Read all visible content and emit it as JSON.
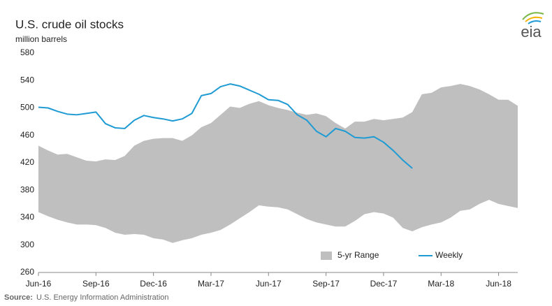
{
  "chart_data": {
    "type": "line",
    "title": "U.S. crude oil stocks",
    "y_label": "million barrels",
    "logo": "eia",
    "source_label": "Source:",
    "source": "U.S. Energy Information Administration",
    "categories": [
      "Jun-16",
      null,
      null,
      null,
      null,
      null,
      "Sep-16",
      null,
      null,
      null,
      null,
      null,
      "Dec-16",
      null,
      null,
      null,
      null,
      null,
      "Mar-17",
      null,
      null,
      null,
      null,
      null,
      "Jun-17",
      null,
      null,
      null,
      null,
      null,
      "Sep-17",
      null,
      null,
      null,
      null,
      null,
      "Dec-17",
      null,
      null,
      null,
      null,
      null,
      "Mar-18",
      null,
      null,
      null,
      null,
      null,
      "Jun-18",
      null,
      null
    ],
    "ylim": [
      260,
      580
    ],
    "yticks": [
      260,
      300,
      340,
      380,
      420,
      460,
      500,
      540,
      580
    ],
    "grid": false,
    "legend": "lower-right",
    "series": [
      {
        "name": "5-yr Range",
        "type": "range",
        "color": "#bfbfbf",
        "low": [
          348,
          342,
          337,
          333,
          330,
          330,
          329,
          325,
          318,
          315,
          316,
          315,
          310,
          308,
          303,
          307,
          310,
          315,
          318,
          322,
          330,
          339,
          348,
          358,
          356,
          355,
          352,
          345,
          338,
          333,
          330,
          327,
          327,
          335,
          345,
          348,
          346,
          340,
          325,
          320,
          326,
          330,
          333,
          340,
          350,
          352,
          360,
          366,
          360,
          357,
          354
        ],
        "high": [
          445,
          438,
          432,
          433,
          428,
          423,
          422,
          425,
          424,
          430,
          445,
          452,
          455,
          456,
          456,
          452,
          460,
          472,
          478,
          490,
          502,
          500,
          506,
          510,
          504,
          500,
          497,
          493,
          490,
          492,
          488,
          478,
          470,
          480,
          480,
          484,
          482,
          484,
          486,
          494,
          520,
          522,
          530,
          532,
          535,
          532,
          527,
          520,
          512,
          512,
          503
        ]
      },
      {
        "name": "Weekly",
        "type": "line",
        "color": "#1f9bd4",
        "values": [
          501,
          500,
          495,
          491,
          490,
          492,
          494,
          477,
          471,
          470,
          482,
          489,
          486,
          484,
          481,
          484,
          492,
          518,
          521,
          531,
          535,
          532,
          526,
          520,
          512,
          511,
          505,
          490,
          482,
          466,
          458,
          470,
          466,
          457,
          456,
          458,
          450,
          438,
          424,
          412,
          null,
          null,
          null,
          null,
          null,
          null,
          null,
          null,
          null,
          null,
          null
        ]
      }
    ]
  }
}
